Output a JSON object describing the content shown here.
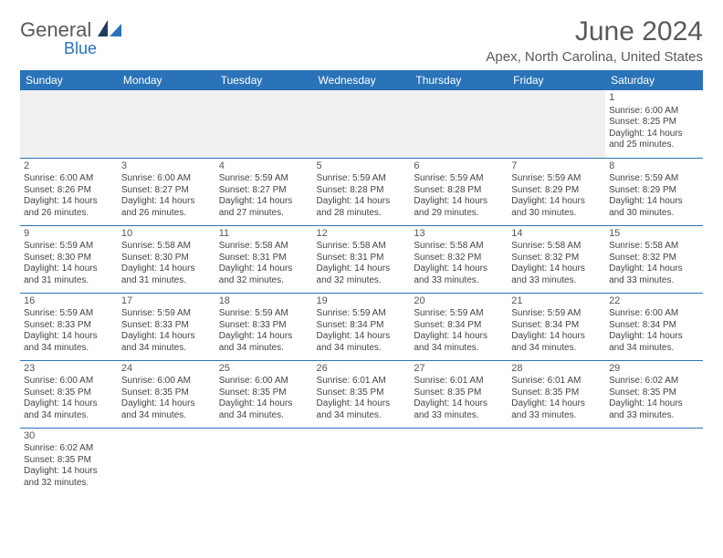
{
  "logo": {
    "primary": "General",
    "secondary": "Blue"
  },
  "title": "June 2024",
  "location": "Apex, North Carolina, United States",
  "colors": {
    "header_bg": "#2a73b8",
    "header_fg": "#ffffff",
    "rule": "#2a73b8",
    "text": "#444444",
    "title": "#5a5a5a"
  },
  "dayNames": [
    "Sunday",
    "Monday",
    "Tuesday",
    "Wednesday",
    "Thursday",
    "Friday",
    "Saturday"
  ],
  "startOffset": 6,
  "days": [
    {
      "n": 1,
      "rise": "6:00 AM",
      "set": "8:25 PM",
      "dl": "14 hours and 25 minutes."
    },
    {
      "n": 2,
      "rise": "6:00 AM",
      "set": "8:26 PM",
      "dl": "14 hours and 26 minutes."
    },
    {
      "n": 3,
      "rise": "6:00 AM",
      "set": "8:27 PM",
      "dl": "14 hours and 26 minutes."
    },
    {
      "n": 4,
      "rise": "5:59 AM",
      "set": "8:27 PM",
      "dl": "14 hours and 27 minutes."
    },
    {
      "n": 5,
      "rise": "5:59 AM",
      "set": "8:28 PM",
      "dl": "14 hours and 28 minutes."
    },
    {
      "n": 6,
      "rise": "5:59 AM",
      "set": "8:28 PM",
      "dl": "14 hours and 29 minutes."
    },
    {
      "n": 7,
      "rise": "5:59 AM",
      "set": "8:29 PM",
      "dl": "14 hours and 30 minutes."
    },
    {
      "n": 8,
      "rise": "5:59 AM",
      "set": "8:29 PM",
      "dl": "14 hours and 30 minutes."
    },
    {
      "n": 9,
      "rise": "5:59 AM",
      "set": "8:30 PM",
      "dl": "14 hours and 31 minutes."
    },
    {
      "n": 10,
      "rise": "5:58 AM",
      "set": "8:30 PM",
      "dl": "14 hours and 31 minutes."
    },
    {
      "n": 11,
      "rise": "5:58 AM",
      "set": "8:31 PM",
      "dl": "14 hours and 32 minutes."
    },
    {
      "n": 12,
      "rise": "5:58 AM",
      "set": "8:31 PM",
      "dl": "14 hours and 32 minutes."
    },
    {
      "n": 13,
      "rise": "5:58 AM",
      "set": "8:32 PM",
      "dl": "14 hours and 33 minutes."
    },
    {
      "n": 14,
      "rise": "5:58 AM",
      "set": "8:32 PM",
      "dl": "14 hours and 33 minutes."
    },
    {
      "n": 15,
      "rise": "5:58 AM",
      "set": "8:32 PM",
      "dl": "14 hours and 33 minutes."
    },
    {
      "n": 16,
      "rise": "5:59 AM",
      "set": "8:33 PM",
      "dl": "14 hours and 34 minutes."
    },
    {
      "n": 17,
      "rise": "5:59 AM",
      "set": "8:33 PM",
      "dl": "14 hours and 34 minutes."
    },
    {
      "n": 18,
      "rise": "5:59 AM",
      "set": "8:33 PM",
      "dl": "14 hours and 34 minutes."
    },
    {
      "n": 19,
      "rise": "5:59 AM",
      "set": "8:34 PM",
      "dl": "14 hours and 34 minutes."
    },
    {
      "n": 20,
      "rise": "5:59 AM",
      "set": "8:34 PM",
      "dl": "14 hours and 34 minutes."
    },
    {
      "n": 21,
      "rise": "5:59 AM",
      "set": "8:34 PM",
      "dl": "14 hours and 34 minutes."
    },
    {
      "n": 22,
      "rise": "6:00 AM",
      "set": "8:34 PM",
      "dl": "14 hours and 34 minutes."
    },
    {
      "n": 23,
      "rise": "6:00 AM",
      "set": "8:35 PM",
      "dl": "14 hours and 34 minutes."
    },
    {
      "n": 24,
      "rise": "6:00 AM",
      "set": "8:35 PM",
      "dl": "14 hours and 34 minutes."
    },
    {
      "n": 25,
      "rise": "6:00 AM",
      "set": "8:35 PM",
      "dl": "14 hours and 34 minutes."
    },
    {
      "n": 26,
      "rise": "6:01 AM",
      "set": "8:35 PM",
      "dl": "14 hours and 34 minutes."
    },
    {
      "n": 27,
      "rise": "6:01 AM",
      "set": "8:35 PM",
      "dl": "14 hours and 33 minutes."
    },
    {
      "n": 28,
      "rise": "6:01 AM",
      "set": "8:35 PM",
      "dl": "14 hours and 33 minutes."
    },
    {
      "n": 29,
      "rise": "6:02 AM",
      "set": "8:35 PM",
      "dl": "14 hours and 33 minutes."
    },
    {
      "n": 30,
      "rise": "6:02 AM",
      "set": "8:35 PM",
      "dl": "14 hours and 32 minutes."
    }
  ],
  "labels": {
    "sunrise": "Sunrise:",
    "sunset": "Sunset:",
    "daylight": "Daylight:"
  }
}
